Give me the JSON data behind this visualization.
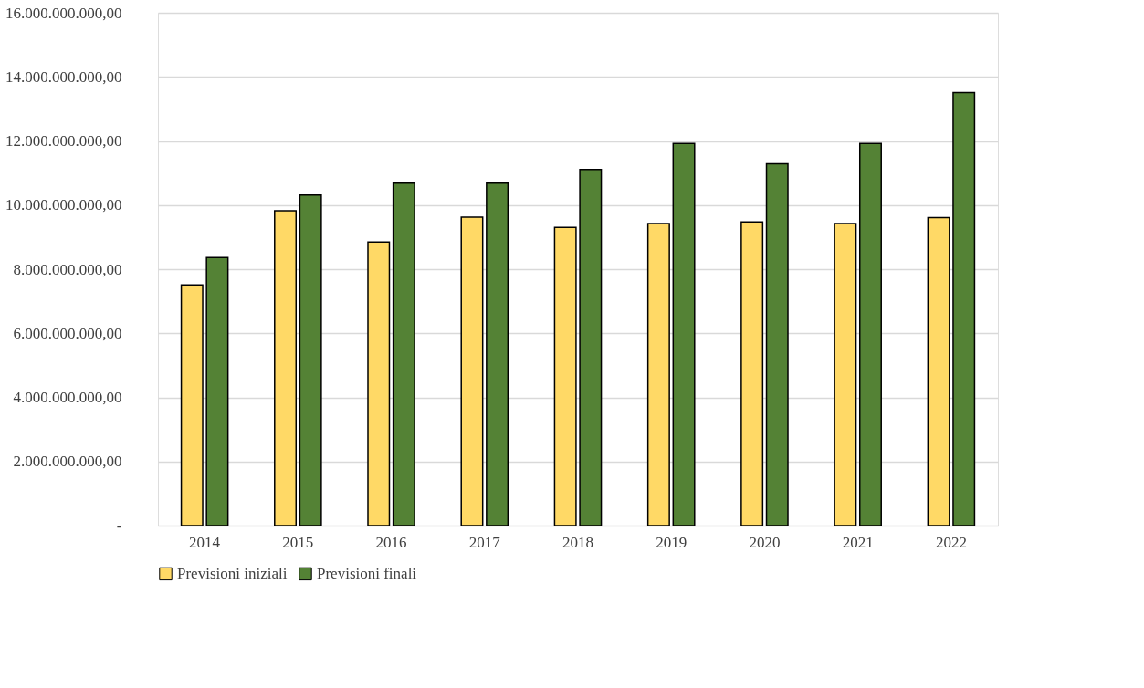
{
  "chart_data": {
    "type": "bar",
    "categories": [
      "2014",
      "2015",
      "2016",
      "2017",
      "2018",
      "2019",
      "2020",
      "2021",
      "2022"
    ],
    "series": [
      {
        "name": "Previsioni iniziali",
        "color": "#ffd966",
        "values": [
          7510000000,
          9820000000,
          8850000000,
          9620000000,
          9300000000,
          9420000000,
          9470000000,
          9420000000,
          9610000000
        ]
      },
      {
        "name": "Previsioni finali",
        "color": "#548235",
        "values": [
          8360000000,
          10310000000,
          10680000000,
          10680000000,
          11110000000,
          11920000000,
          11290000000,
          11920000000,
          13510000000
        ]
      }
    ],
    "ylim": [
      0,
      16000000000
    ],
    "yticks": [
      {
        "value": 0,
        "label": "-"
      },
      {
        "value": 2000000000,
        "label": "2.000.000.000,00"
      },
      {
        "value": 4000000000,
        "label": "4.000.000.000,00"
      },
      {
        "value": 6000000000,
        "label": "6.000.000.000,00"
      },
      {
        "value": 8000000000,
        "label": "8.000.000.000,00"
      },
      {
        "value": 10000000000,
        "label": "10.000.000.000,00"
      },
      {
        "value": 12000000000,
        "label": "12.000.000.000,00"
      },
      {
        "value": 14000000000,
        "label": "14.000.000.000,00"
      },
      {
        "value": 16000000000,
        "label": "16.000.000.000,00"
      }
    ],
    "grid": "y",
    "legend": "bottom"
  }
}
